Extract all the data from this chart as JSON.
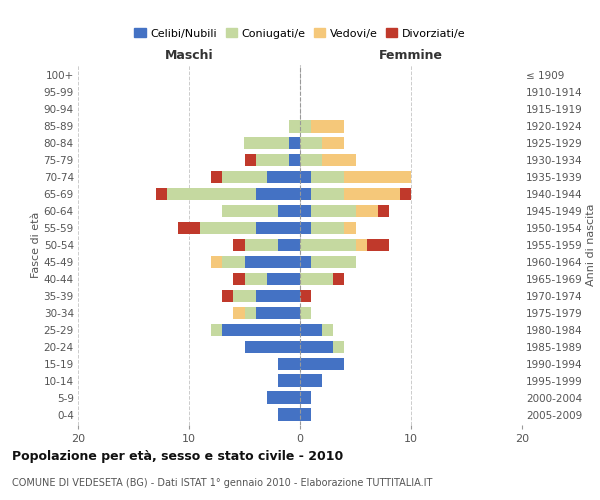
{
  "age_groups": [
    "0-4",
    "5-9",
    "10-14",
    "15-19",
    "20-24",
    "25-29",
    "30-34",
    "35-39",
    "40-44",
    "45-49",
    "50-54",
    "55-59",
    "60-64",
    "65-69",
    "70-74",
    "75-79",
    "80-84",
    "85-89",
    "90-94",
    "95-99",
    "100+"
  ],
  "birth_years": [
    "2005-2009",
    "2000-2004",
    "1995-1999",
    "1990-1994",
    "1985-1989",
    "1980-1984",
    "1975-1979",
    "1970-1974",
    "1965-1969",
    "1960-1964",
    "1955-1959",
    "1950-1954",
    "1945-1949",
    "1940-1944",
    "1935-1939",
    "1930-1934",
    "1925-1929",
    "1920-1924",
    "1915-1919",
    "1910-1914",
    "≤ 1909"
  ],
  "males": {
    "celibe": [
      2,
      3,
      2,
      2,
      5,
      7,
      4,
      4,
      3,
      5,
      2,
      4,
      2,
      4,
      3,
      1,
      1,
      0,
      0,
      0,
      0
    ],
    "coniugato": [
      0,
      0,
      0,
      0,
      0,
      1,
      1,
      2,
      2,
      2,
      3,
      5,
      5,
      8,
      4,
      3,
      4,
      1,
      0,
      0,
      0
    ],
    "vedovo": [
      0,
      0,
      0,
      0,
      0,
      0,
      1,
      0,
      0,
      1,
      0,
      0,
      0,
      0,
      0,
      0,
      0,
      0,
      0,
      0,
      0
    ],
    "divorziato": [
      0,
      0,
      0,
      0,
      0,
      0,
      0,
      1,
      1,
      0,
      1,
      2,
      0,
      1,
      1,
      1,
      0,
      0,
      0,
      0,
      0
    ]
  },
  "females": {
    "nubile": [
      1,
      1,
      2,
      4,
      3,
      2,
      0,
      0,
      0,
      1,
      0,
      1,
      1,
      1,
      1,
      0,
      0,
      0,
      0,
      0,
      0
    ],
    "coniugata": [
      0,
      0,
      0,
      0,
      1,
      1,
      1,
      0,
      3,
      4,
      5,
      3,
      4,
      3,
      3,
      2,
      2,
      1,
      0,
      0,
      0
    ],
    "vedova": [
      0,
      0,
      0,
      0,
      0,
      0,
      0,
      0,
      0,
      0,
      1,
      1,
      2,
      5,
      6,
      3,
      2,
      3,
      0,
      0,
      0
    ],
    "divorziata": [
      0,
      0,
      0,
      0,
      0,
      0,
      0,
      1,
      1,
      0,
      2,
      0,
      1,
      1,
      0,
      0,
      0,
      0,
      0,
      0,
      0
    ]
  },
  "colors": {
    "celibe_nubile": "#4472c4",
    "coniugato_a": "#c5d9a0",
    "vedovo_a": "#f5c87a",
    "divorziato_a": "#c0392b"
  },
  "xlim": 20,
  "title": "Popolazione per età, sesso e stato civile - 2010",
  "subtitle": "COMUNE DI VEDESETA (BG) - Dati ISTAT 1° gennaio 2010 - Elaborazione TUTTITALIA.IT",
  "ylabel_left": "Fasce di età",
  "ylabel_right": "Anni di nascita",
  "xlabel_left": "Maschi",
  "xlabel_right": "Femmine",
  "bg_color": "#ffffff",
  "grid_color": "#cccccc"
}
